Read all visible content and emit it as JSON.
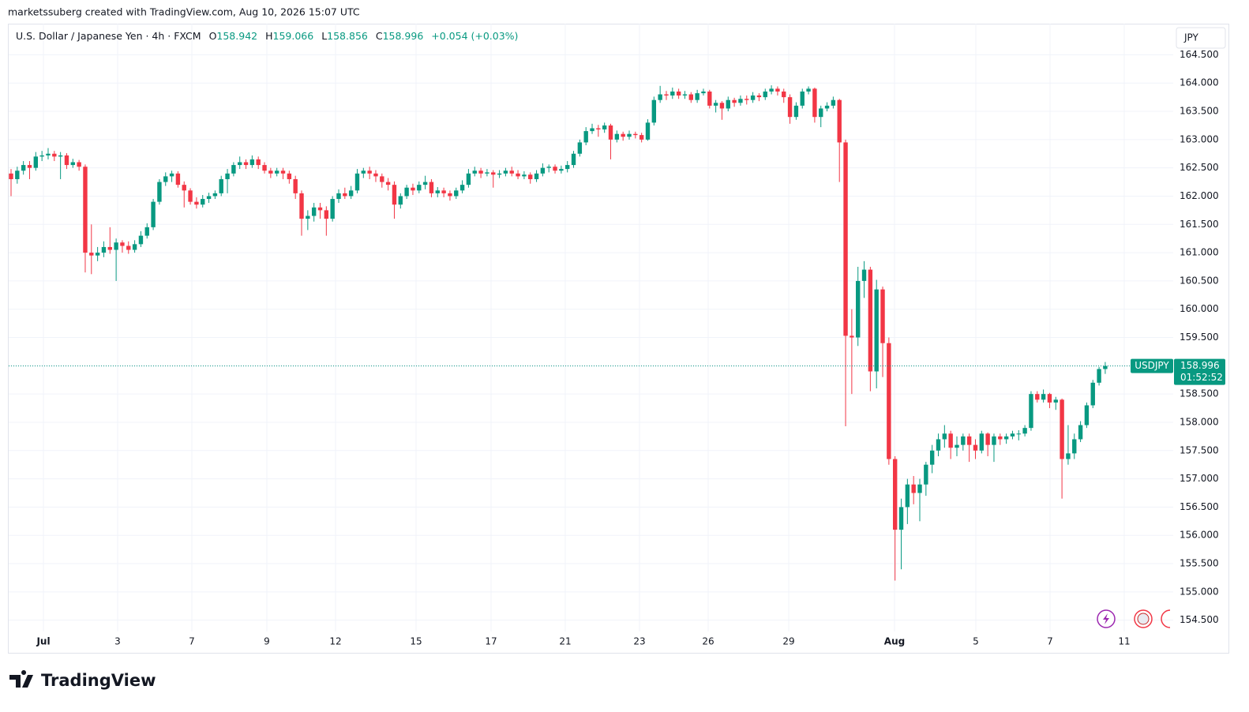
{
  "attribution": "marketssuberg created with TradingView.com, Aug 10, 2026 15:07 UTC",
  "brand": "TradingView",
  "chart_data": {
    "type": "candlestick",
    "title": "U.S. Dollar / Japanese Yen · 4h · FXCM",
    "ohlc_labels": [
      "O",
      "H",
      "L",
      "C"
    ],
    "change": "+0.054 (+0.03%)",
    "currency": "JPY",
    "symbol": "USDJPY",
    "countdown": "01:52:52",
    "up_color": "#089981",
    "down_color": "#f23645",
    "grid": true,
    "ylim": [
      154.3,
      165.05
    ],
    "yticks": [
      {
        "value": 154.5,
        "label": "154.500"
      },
      {
        "value": 155,
        "label": "155.000"
      },
      {
        "value": 155.5,
        "label": "155.500"
      },
      {
        "value": 156,
        "label": "156.000"
      },
      {
        "value": 156.5,
        "label": "156.500"
      },
      {
        "value": 157,
        "label": "157.000"
      },
      {
        "value": 157.5,
        "label": "157.500"
      },
      {
        "value": 158,
        "label": "158.000"
      },
      {
        "value": 158.5,
        "label": "158.500"
      },
      {
        "value": 159,
        "label": "159.000"
      },
      {
        "value": 159.5,
        "label": "159.500"
      },
      {
        "value": 160,
        "label": "160.000"
      },
      {
        "value": 160.5,
        "label": "160.500"
      },
      {
        "value": 161,
        "label": "161.000"
      },
      {
        "value": 161.5,
        "label": "161.500"
      },
      {
        "value": 162,
        "label": "162.000"
      },
      {
        "value": 162.5,
        "label": "162.500"
      },
      {
        "value": 163,
        "label": "163.000"
      },
      {
        "value": 163.5,
        "label": "163.500"
      },
      {
        "value": 164,
        "label": "164.000"
      },
      {
        "value": 164.5,
        "label": "164.500"
      }
    ],
    "x_labels": [
      "Jul",
      "3",
      "7",
      "9",
      "12",
      "15",
      "17",
      "21",
      "23",
      "26",
      "29",
      "Aug",
      "5",
      "7",
      "11"
    ],
    "ohlc": [
      [
        162.4,
        162.48,
        162.0,
        162.3
      ],
      [
        162.3,
        162.52,
        162.22,
        162.45
      ],
      [
        162.45,
        162.62,
        162.38,
        162.55
      ],
      [
        162.55,
        162.62,
        162.3,
        162.5
      ],
      [
        162.5,
        162.78,
        162.45,
        162.7
      ],
      [
        162.7,
        162.8,
        162.62,
        162.72
      ],
      [
        162.72,
        162.85,
        162.65,
        162.75
      ],
      [
        162.75,
        162.8,
        162.62,
        162.7
      ],
      [
        162.7,
        162.78,
        162.3,
        162.72
      ],
      [
        162.72,
        162.76,
        162.48,
        162.55
      ],
      [
        162.55,
        162.66,
        162.5,
        162.6
      ],
      [
        162.6,
        162.64,
        162.45,
        162.52
      ],
      [
        162.52,
        162.56,
        160.65,
        161.0
      ],
      [
        161.0,
        161.5,
        160.62,
        160.95
      ],
      [
        160.95,
        161.1,
        160.85,
        161.0
      ],
      [
        161.0,
        161.2,
        160.92,
        161.1
      ],
      [
        161.1,
        161.45,
        160.98,
        161.05
      ],
      [
        161.05,
        161.25,
        160.5,
        161.18
      ],
      [
        161.18,
        161.22,
        161.0,
        161.12
      ],
      [
        161.12,
        161.2,
        160.98,
        161.05
      ],
      [
        161.05,
        161.22,
        161.0,
        161.15
      ],
      [
        161.15,
        161.38,
        161.1,
        161.3
      ],
      [
        161.3,
        161.52,
        161.25,
        161.45
      ],
      [
        161.45,
        161.95,
        161.4,
        161.9
      ],
      [
        161.9,
        162.3,
        161.85,
        162.25
      ],
      [
        162.25,
        162.42,
        162.18,
        162.35
      ],
      [
        162.35,
        162.45,
        162.25,
        162.4
      ],
      [
        162.4,
        162.44,
        162.15,
        162.2
      ],
      [
        162.2,
        162.26,
        161.8,
        162.1
      ],
      [
        162.1,
        162.14,
        161.85,
        161.9
      ],
      [
        161.9,
        161.98,
        161.78,
        161.85
      ],
      [
        161.85,
        162.02,
        161.8,
        161.95
      ],
      [
        161.95,
        162.06,
        161.88,
        162.0
      ],
      [
        162.0,
        162.1,
        161.95,
        162.05
      ],
      [
        162.05,
        162.36,
        162.0,
        162.3
      ],
      [
        162.3,
        162.48,
        162.05,
        162.4
      ],
      [
        162.4,
        162.6,
        162.35,
        162.55
      ],
      [
        162.55,
        162.7,
        162.48,
        162.6
      ],
      [
        162.6,
        162.65,
        162.48,
        162.55
      ],
      [
        162.55,
        162.72,
        162.5,
        162.65
      ],
      [
        162.65,
        162.7,
        162.48,
        162.55
      ],
      [
        162.55,
        162.6,
        162.4,
        162.45
      ],
      [
        162.45,
        162.5,
        162.32,
        162.4
      ],
      [
        162.4,
        162.5,
        162.35,
        162.45
      ],
      [
        162.45,
        162.5,
        162.3,
        162.4
      ],
      [
        162.4,
        162.45,
        162.22,
        162.3
      ],
      [
        162.3,
        162.36,
        161.95,
        162.05
      ],
      [
        162.05,
        162.1,
        161.3,
        161.6
      ],
      [
        161.6,
        161.75,
        161.4,
        161.65
      ],
      [
        161.65,
        161.88,
        161.55,
        161.8
      ],
      [
        161.8,
        161.88,
        161.6,
        161.75
      ],
      [
        161.75,
        161.82,
        161.3,
        161.6
      ],
      [
        161.6,
        162.0,
        161.55,
        161.95
      ],
      [
        161.95,
        162.12,
        161.88,
        162.05
      ],
      [
        162.05,
        162.15,
        161.95,
        162.0
      ],
      [
        162.0,
        162.18,
        161.95,
        162.1
      ],
      [
        162.1,
        162.48,
        162.05,
        162.4
      ],
      [
        162.4,
        162.5,
        162.32,
        162.45
      ],
      [
        162.45,
        162.52,
        162.3,
        162.4
      ],
      [
        162.4,
        162.46,
        162.25,
        162.35
      ],
      [
        162.35,
        162.4,
        162.15,
        162.25
      ],
      [
        162.25,
        162.32,
        162.1,
        162.2
      ],
      [
        162.2,
        162.26,
        161.6,
        161.85
      ],
      [
        161.85,
        162.05,
        161.78,
        162.0
      ],
      [
        162.0,
        162.2,
        161.95,
        162.15
      ],
      [
        162.15,
        162.22,
        162.02,
        162.1
      ],
      [
        162.1,
        162.26,
        162.05,
        162.2
      ],
      [
        162.2,
        162.36,
        162.12,
        162.25
      ],
      [
        162.25,
        162.3,
        161.98,
        162.05
      ],
      [
        162.05,
        162.16,
        161.98,
        162.1
      ],
      [
        162.1,
        162.15,
        161.98,
        162.05
      ],
      [
        162.05,
        162.1,
        161.92,
        162.0
      ],
      [
        162.0,
        162.15,
        161.95,
        162.1
      ],
      [
        162.1,
        162.28,
        162.05,
        162.2
      ],
      [
        162.2,
        162.48,
        162.15,
        162.4
      ],
      [
        162.4,
        162.52,
        162.35,
        162.45
      ],
      [
        162.45,
        162.5,
        162.32,
        162.4
      ],
      [
        162.4,
        162.48,
        162.35,
        162.42
      ],
      [
        162.42,
        162.46,
        162.15,
        162.38
      ],
      [
        162.38,
        162.46,
        162.32,
        162.4
      ],
      [
        162.4,
        162.5,
        162.35,
        162.45
      ],
      [
        162.45,
        162.52,
        162.35,
        162.4
      ],
      [
        162.4,
        162.46,
        162.3,
        162.35
      ],
      [
        162.35,
        162.44,
        162.3,
        162.38
      ],
      [
        162.38,
        162.42,
        162.22,
        162.3
      ],
      [
        162.3,
        162.46,
        162.25,
        162.4
      ],
      [
        162.4,
        162.58,
        162.35,
        162.5
      ],
      [
        162.5,
        162.56,
        162.42,
        162.52
      ],
      [
        162.52,
        162.56,
        162.4,
        162.45
      ],
      [
        162.45,
        162.54,
        162.4,
        162.48
      ],
      [
        162.48,
        162.62,
        162.42,
        162.55
      ],
      [
        162.55,
        162.8,
        162.5,
        162.75
      ],
      [
        162.75,
        163.0,
        162.7,
        162.95
      ],
      [
        162.95,
        163.22,
        162.9,
        163.15
      ],
      [
        163.15,
        163.28,
        163.1,
        163.2
      ],
      [
        163.2,
        163.26,
        163.05,
        163.18
      ],
      [
        163.18,
        163.3,
        163.12,
        163.25
      ],
      [
        163.25,
        163.28,
        162.65,
        163.0
      ],
      [
        163.0,
        163.16,
        162.95,
        163.1
      ],
      [
        163.1,
        163.14,
        162.98,
        163.05
      ],
      [
        163.05,
        163.16,
        163.0,
        163.1
      ],
      [
        163.1,
        163.14,
        163.02,
        163.08
      ],
      [
        163.08,
        163.12,
        162.95,
        163.0
      ],
      [
        163.0,
        163.36,
        162.98,
        163.3
      ],
      [
        163.3,
        163.76,
        163.25,
        163.7
      ],
      [
        163.7,
        163.95,
        163.65,
        163.8
      ],
      [
        163.8,
        163.86,
        163.7,
        163.78
      ],
      [
        163.78,
        163.92,
        163.72,
        163.85
      ],
      [
        163.85,
        163.9,
        163.72,
        163.78
      ],
      [
        163.78,
        163.86,
        163.72,
        163.8
      ],
      [
        163.8,
        163.84,
        163.65,
        163.7
      ],
      [
        163.7,
        163.88,
        163.65,
        163.82
      ],
      [
        163.82,
        163.9,
        163.78,
        163.85
      ],
      [
        163.85,
        163.88,
        163.55,
        163.6
      ],
      [
        163.6,
        163.7,
        163.48,
        163.65
      ],
      [
        163.65,
        163.68,
        163.35,
        163.55
      ],
      [
        163.55,
        163.76,
        163.5,
        163.7
      ],
      [
        163.7,
        163.74,
        163.58,
        163.65
      ],
      [
        163.65,
        163.78,
        163.6,
        163.72
      ],
      [
        163.72,
        163.78,
        163.62,
        163.7
      ],
      [
        163.7,
        163.84,
        163.65,
        163.78
      ],
      [
        163.78,
        163.82,
        163.68,
        163.75
      ],
      [
        163.75,
        163.9,
        163.7,
        163.85
      ],
      [
        163.85,
        163.96,
        163.8,
        163.9
      ],
      [
        163.9,
        163.94,
        163.78,
        163.85
      ],
      [
        163.85,
        163.9,
        163.65,
        163.75
      ],
      [
        163.75,
        163.8,
        163.28,
        163.4
      ],
      [
        163.4,
        163.66,
        163.35,
        163.6
      ],
      [
        163.6,
        163.9,
        163.55,
        163.85
      ],
      [
        163.85,
        163.94,
        163.8,
        163.9
      ],
      [
        163.9,
        163.92,
        163.3,
        163.4
      ],
      [
        163.4,
        163.6,
        163.22,
        163.55
      ],
      [
        163.55,
        163.66,
        163.5,
        163.6
      ],
      [
        163.6,
        163.76,
        163.55,
        163.7
      ],
      [
        163.7,
        163.72,
        162.25,
        162.95
      ],
      [
        162.95,
        163.0,
        157.93,
        159.53
      ],
      [
        159.53,
        160.0,
        158.5,
        159.5
      ],
      [
        159.5,
        160.75,
        159.35,
        160.5
      ],
      [
        160.5,
        160.85,
        160.2,
        160.7
      ],
      [
        160.7,
        160.75,
        158.55,
        158.9
      ],
      [
        158.9,
        160.52,
        158.6,
        160.35
      ],
      [
        160.35,
        160.4,
        158.8,
        159.4
      ],
      [
        159.4,
        159.5,
        157.25,
        157.35
      ],
      [
        157.35,
        157.4,
        155.2,
        156.1
      ],
      [
        156.1,
        156.65,
        155.4,
        156.5
      ],
      [
        156.5,
        157.0,
        156.2,
        156.9
      ],
      [
        156.9,
        157.05,
        156.55,
        156.75
      ],
      [
        156.75,
        157.0,
        156.25,
        156.9
      ],
      [
        156.9,
        157.3,
        156.7,
        157.25
      ],
      [
        157.25,
        157.6,
        157.1,
        157.5
      ],
      [
        157.5,
        157.8,
        157.4,
        157.7
      ],
      [
        157.7,
        157.95,
        157.55,
        157.8
      ],
      [
        157.8,
        157.85,
        157.35,
        157.55
      ],
      [
        157.55,
        157.75,
        157.4,
        157.6
      ],
      [
        157.6,
        157.8,
        157.5,
        157.75
      ],
      [
        157.75,
        157.8,
        157.3,
        157.6
      ],
      [
        157.6,
        157.7,
        157.35,
        157.5
      ],
      [
        157.5,
        157.85,
        157.45,
        157.8
      ],
      [
        157.8,
        157.82,
        157.4,
        157.6
      ],
      [
        157.6,
        157.8,
        157.3,
        157.75
      ],
      [
        157.75,
        157.8,
        157.6,
        157.7
      ],
      [
        157.7,
        157.8,
        157.62,
        157.75
      ],
      [
        157.75,
        157.85,
        157.7,
        157.8
      ],
      [
        157.8,
        157.86,
        157.68,
        157.8
      ],
      [
        157.8,
        157.95,
        157.75,
        157.9
      ],
      [
        157.9,
        158.55,
        157.85,
        158.5
      ],
      [
        158.5,
        158.55,
        158.35,
        158.4
      ],
      [
        158.4,
        158.58,
        158.35,
        158.5
      ],
      [
        158.5,
        158.52,
        158.25,
        158.35
      ],
      [
        158.35,
        158.45,
        158.22,
        158.4
      ],
      [
        158.4,
        158.42,
        156.65,
        157.35
      ],
      [
        157.35,
        157.95,
        157.25,
        157.45
      ],
      [
        157.45,
        157.8,
        157.35,
        157.7
      ],
      [
        157.7,
        158.02,
        157.65,
        157.95
      ],
      [
        157.95,
        158.35,
        157.9,
        158.3
      ],
      [
        158.3,
        158.75,
        158.25,
        158.7
      ],
      [
        158.7,
        158.98,
        158.65,
        158.942
      ],
      [
        158.942,
        159.066,
        158.856,
        158.996
      ]
    ]
  }
}
